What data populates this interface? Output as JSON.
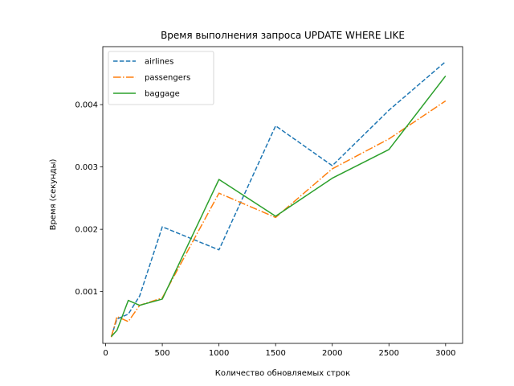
{
  "chart_data": {
    "type": "line",
    "title": "Время выполнения запроса UPDATE WHERE LIKE",
    "xlabel": "Количество обновляемых строк",
    "ylabel": "Время (секунды)",
    "xlim": [
      -25,
      3150
    ],
    "ylim": [
      0.00017,
      0.00493
    ],
    "xticks": [
      0,
      500,
      1000,
      1500,
      2000,
      2500,
      3000
    ],
    "xtick_labels": [
      "0",
      "500",
      "1000",
      "1500",
      "2000",
      "2500",
      "3000"
    ],
    "yticks": [
      0.001,
      0.002,
      0.003,
      0.004
    ],
    "ytick_labels": [
      "0.001",
      "0.002",
      "0.003",
      "0.004"
    ],
    "grid": false,
    "legend_position": "top-left",
    "series": [
      {
        "name": "airlines",
        "color": "#1f77b4",
        "linestyle": "dashed",
        "x": [
          50,
          100,
          200,
          300,
          500,
          1000,
          1500,
          2000,
          2500,
          3000
        ],
        "y": [
          0.00028,
          0.00056,
          0.00064,
          0.00093,
          0.00204,
          0.00167,
          0.00366,
          0.00302,
          0.00391,
          0.00469
        ]
      },
      {
        "name": "passengers",
        "color": "#ff7f0e",
        "linestyle": "dashdot",
        "x": [
          50,
          100,
          200,
          300,
          500,
          1000,
          1500,
          2000,
          2500,
          3000
        ],
        "y": [
          0.00027,
          0.0006,
          0.00052,
          0.00078,
          0.0009,
          0.00258,
          0.00219,
          0.00297,
          0.00345,
          0.00406
        ]
      },
      {
        "name": "baggage",
        "color": "#2ca02c",
        "linestyle": "solid",
        "x": [
          50,
          100,
          200,
          300,
          500,
          1000,
          1500,
          2000,
          2500,
          3000
        ],
        "y": [
          0.00028,
          0.00038,
          0.00086,
          0.00078,
          0.00088,
          0.0028,
          0.00221,
          0.00282,
          0.00328,
          0.00446
        ]
      }
    ]
  }
}
